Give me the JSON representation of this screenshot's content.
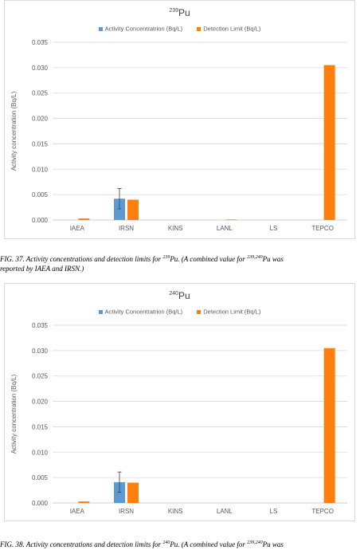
{
  "charts": [
    {
      "title_mass": "239",
      "title_element": "Pu",
      "caption_line1_pre": "FIG. 37. Activity concentrations and detection limits for ",
      "caption_line1_mass": "239",
      "caption_line1_mid": "Pu. (A combined value for ",
      "caption_line1_mass2": "239,240",
      "caption_line1_post": "Pu was",
      "caption_line2": "reported by IAEA and IRSN.)"
    },
    {
      "title_mass": "240",
      "title_element": "Pu",
      "caption_line1_pre": "FIG. 38. Activity concentrations and detection limits for ",
      "caption_line1_mass": "240",
      "caption_line1_mid": "Pu. (A combined value for ",
      "caption_line1_mass2": "239,240",
      "caption_line1_post": "Pu was",
      "caption_line2": ""
    }
  ],
  "chart_data": [
    {
      "type": "bar",
      "title": "239Pu",
      "ylabel": "Activity concentration (Bq/L)",
      "xlabel": "",
      "categories": [
        "IAEA",
        "IRSN",
        "KINS",
        "LANL",
        "LS",
        "TEPCO"
      ],
      "ylim": [
        0,
        0.035
      ],
      "yticks": [
        "0.000",
        "0.005",
        "0.010",
        "0.015",
        "0.020",
        "0.025",
        "0.030",
        "0.035"
      ],
      "grid": true,
      "legend_position": "top",
      "series": [
        {
          "name": "Activity Concentratrion (Bq/L)",
          "color": "#5b9bd5",
          "values": [
            null,
            0.0042,
            null,
            null,
            null,
            null
          ],
          "error": [
            null,
            0.002,
            null,
            null,
            null,
            null
          ]
        },
        {
          "name": "Detection Limit (Bq/L)",
          "color": "#ff7f0e",
          "values": [
            0.0003,
            0.004,
            null,
            0.0001,
            null,
            0.0305
          ]
        }
      ]
    },
    {
      "type": "bar",
      "title": "240Pu",
      "ylabel": "Activity concentration (Bq/L)",
      "xlabel": "",
      "categories": [
        "IAEA",
        "IRSN",
        "KINS",
        "LANL",
        "LS",
        "TEPCO"
      ],
      "ylim": [
        0,
        0.035
      ],
      "yticks": [
        "0.000",
        "0.005",
        "0.010",
        "0.015",
        "0.020",
        "0.025",
        "0.030",
        "0.035"
      ],
      "grid": true,
      "legend_position": "top",
      "series": [
        {
          "name": "Activity Concentratrion (Bq/L)",
          "color": "#5b9bd5",
          "values": [
            null,
            0.0041,
            null,
            null,
            null,
            null
          ],
          "error": [
            null,
            0.002,
            null,
            null,
            null,
            null
          ]
        },
        {
          "name": "Detection Limit (Bq/L)",
          "color": "#ff7f0e",
          "values": [
            0.0003,
            0.004,
            null,
            null,
            null,
            0.0305
          ]
        }
      ]
    }
  ]
}
